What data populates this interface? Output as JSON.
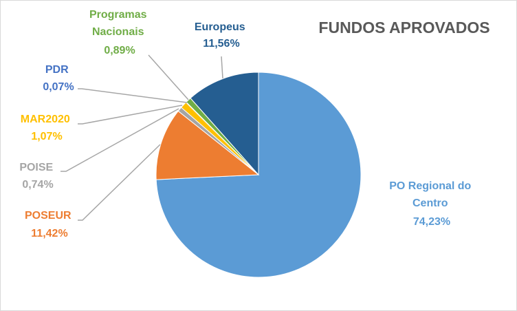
{
  "chart_data": {
    "type": "pie",
    "title": "FUNDOS APROVADOS",
    "slices": [
      {
        "name": "PO Regional do Centro",
        "value_label": "74,23%",
        "value": 74.23,
        "color": "#5b9bd5"
      },
      {
        "name": "POSEUR",
        "value_label": "11,42%",
        "value": 11.42,
        "color": "#ed7d31"
      },
      {
        "name": "POISE",
        "value_label": "0,74%",
        "value": 0.74,
        "color": "#a5a5a5"
      },
      {
        "name": "MAR2020",
        "value_label": "1,07%",
        "value": 1.07,
        "color": "#ffc000"
      },
      {
        "name": "PDR",
        "value_label": "0,07%",
        "value": 0.07,
        "color": "#4472c4"
      },
      {
        "name": "Programas Nacionais",
        "value_label": "0,89%",
        "value": 0.89,
        "color": "#70ad47"
      },
      {
        "name": "Europeus",
        "value_label": "11,56%",
        "value": 11.56,
        "color": "#255e91"
      }
    ]
  }
}
